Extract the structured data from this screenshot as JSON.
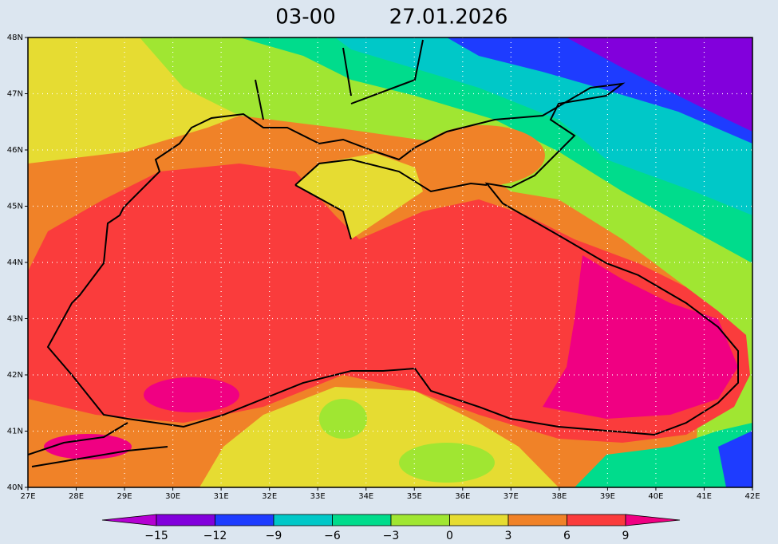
{
  "header": {
    "time": "03-00",
    "date": "27.01.2026"
  },
  "map": {
    "lon_labels": [
      "27E",
      "28E",
      "29E",
      "30E",
      "31E",
      "32E",
      "33E",
      "34E",
      "35E",
      "36E",
      "37E",
      "38E",
      "39E",
      "40E",
      "41E",
      "42E"
    ],
    "lat_labels": [
      "40N",
      "41N",
      "42N",
      "43N",
      "44N",
      "45N",
      "46N",
      "47N",
      "48N"
    ]
  },
  "legend": {
    "labels": [
      "−15",
      "−12",
      "−9",
      "−6",
      "−3",
      "0",
      "3",
      "6",
      "9"
    ],
    "colors": [
      "#b400d2",
      "#8200dc",
      "#1e3cff",
      "#00c8c8",
      "#00dc8c",
      "#a0e632",
      "#e6dc32",
      "#f08228",
      "#fa3c3c",
      "#f00082"
    ]
  }
}
